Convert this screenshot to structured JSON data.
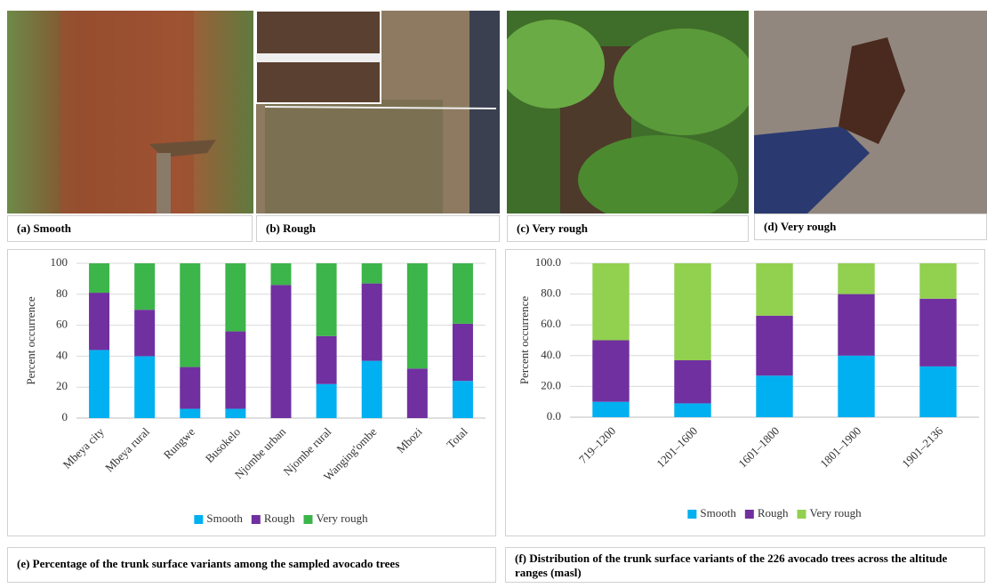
{
  "panels": [
    {
      "caption": "(a) Smooth"
    },
    {
      "caption": "(b) Rough"
    },
    {
      "caption": "(c) Very rough"
    },
    {
      "caption": "(d) Very rough"
    }
  ],
  "chart_data": [
    {
      "type": "bar",
      "stacked": true,
      "title": "(e)   Percentage of the trunk surface variants among the sampled avocado trees",
      "ylabel": "Percent occurrence",
      "categories": [
        "Mbeya city",
        "Mbeya rural",
        "Rungwe",
        "Busokelo",
        "Njombe urban",
        "Njombe rural",
        "Wanging'ombe",
        "Mbozi",
        "Total"
      ],
      "series": [
        {
          "name": "Smooth",
          "color": "#00b0f0",
          "values": [
            44,
            40,
            6,
            6,
            0,
            22,
            37,
            0,
            24
          ]
        },
        {
          "name": "Rough",
          "color": "#7030a0",
          "values": [
            37,
            30,
            27,
            50,
            86,
            31,
            50,
            32,
            37
          ]
        },
        {
          "name": "Very rough",
          "color": "#3cb54a",
          "values": [
            19,
            30,
            67,
            44,
            14,
            47,
            13,
            68,
            39
          ]
        }
      ],
      "ylim": [
        0,
        100
      ],
      "yticks": [
        0,
        20,
        40,
        60,
        80,
        100
      ],
      "grid": true,
      "legend": "bottom"
    },
    {
      "type": "bar",
      "stacked": true,
      "title": "(f)   Distribution of  the trunk surface variants of the 226 avocado trees across the altitude ranges (masl)",
      "ylabel": "Percent occurrence",
      "categories": [
        "719–1200",
        "1201–1600",
        "1601–1800",
        "1801–1900",
        "1901–2136"
      ],
      "series": [
        {
          "name": "Smooth",
          "color": "#00b0f0",
          "values": [
            10,
            9,
            27,
            40,
            33
          ]
        },
        {
          "name": "Rough",
          "color": "#7030a0",
          "values": [
            40,
            28,
            39,
            40,
            44
          ]
        },
        {
          "name": "Very rough",
          "color": "#92d050",
          "values": [
            50,
            63,
            34,
            20,
            23
          ]
        }
      ],
      "ylim": [
        0,
        100
      ],
      "yticks": [
        {
          "value": 0,
          "label": "0.0"
        },
        {
          "value": 20,
          "label": "20.0"
        },
        {
          "value": 40,
          "label": "40.0"
        },
        {
          "value": 60,
          "label": "60.0"
        },
        {
          "value": 80,
          "label": "80.0"
        },
        {
          "value": 100,
          "label": "100.0"
        }
      ],
      "grid": true,
      "legend": "bottom"
    }
  ]
}
